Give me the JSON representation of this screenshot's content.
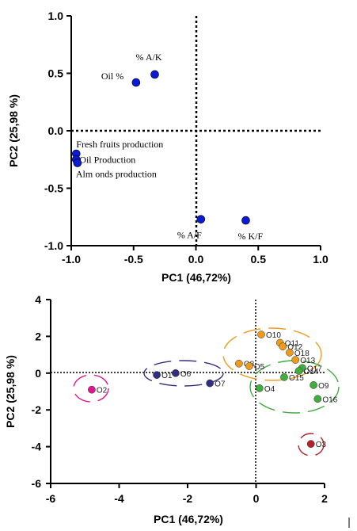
{
  "chart_data": [
    {
      "type": "scatter",
      "xlabel": "PC1 (46,72%)",
      "ylabel": "PC2 (25,98 %)",
      "xlim": [
        -1.0,
        1.0
      ],
      "ylim": [
        -1.0,
        1.0
      ],
      "xticks": [
        "-1.0",
        "-0.5",
        "0.0",
        "0.5",
        "1.0"
      ],
      "yticks": [
        "1.0",
        "0.5",
        "0.0",
        "-0.5",
        "-1.0"
      ],
      "marker_color": "#0a1ad6",
      "points": [
        {
          "label": "% A/K",
          "x": -0.33,
          "y": 0.49
        },
        {
          "label": "Oil %",
          "x": -0.48,
          "y": 0.42
        },
        {
          "label": "Fresh fruits production",
          "x": -0.96,
          "y": -0.2
        },
        {
          "label": "Oil Production",
          "x": -0.96,
          "y": -0.25
        },
        {
          "label": "Alm onds production",
          "x": -0.95,
          "y": -0.28
        },
        {
          "label": "% A/F",
          "x": 0.04,
          "y": -0.77
        },
        {
          "label": "% K/F",
          "x": 0.4,
          "y": -0.78
        }
      ]
    },
    {
      "type": "scatter",
      "xlabel": "PC1 (46,72%)",
      "ylabel": "PC2 (25,98 %)",
      "xlim": [
        -6,
        2
      ],
      "ylim": [
        -6,
        4
      ],
      "xticks": [
        "-6",
        "-4",
        "-2",
        "0",
        "2"
      ],
      "yticks": [
        "4",
        "2",
        "0",
        "-2",
        "-4",
        "-6"
      ],
      "groups": [
        {
          "color": "#e0168c",
          "points": [
            {
              "label": "O2",
              "x": -4.8,
              "y": -0.9
            }
          ]
        },
        {
          "color": "#332c80",
          "points": [
            {
              "label": "O1",
              "x": -2.9,
              "y": -0.1
            },
            {
              "label": "O6",
              "x": -2.35,
              "y": 0.0
            },
            {
              "label": "O7",
              "x": -1.35,
              "y": -0.55
            }
          ]
        },
        {
          "color": "#f09a1c",
          "points": [
            {
              "label": "O10",
              "x": 0.15,
              "y": 2.1
            },
            {
              "label": "O11",
              "x": 0.7,
              "y": 1.65
            },
            {
              "label": "O12",
              "x": 0.78,
              "y": 1.45
            },
            {
              "label": "O18",
              "x": 0.98,
              "y": 1.12
            },
            {
              "label": "O13",
              "x": 1.15,
              "y": 0.72
            },
            {
              "label": "O8",
              "x": -0.5,
              "y": 0.52
            },
            {
              "label": "O5",
              "x": -0.2,
              "y": 0.38
            }
          ]
        },
        {
          "color": "#42ad3f",
          "points": [
            {
              "label": "O17",
              "x": 1.35,
              "y": 0.28
            },
            {
              "label": "O14",
              "x": 1.25,
              "y": 0.12
            },
            {
              "label": "O15",
              "x": 0.82,
              "y": -0.22
            },
            {
              "label": "O4",
              "x": 0.1,
              "y": -0.82
            },
            {
              "label": "O9",
              "x": 1.68,
              "y": -0.65
            },
            {
              "label": "O16",
              "x": 1.8,
              "y": -1.4
            }
          ]
        },
        {
          "color": "#b3222a",
          "points": [
            {
              "label": "O3",
              "x": 1.6,
              "y": -3.85
            }
          ]
        }
      ]
    }
  ]
}
